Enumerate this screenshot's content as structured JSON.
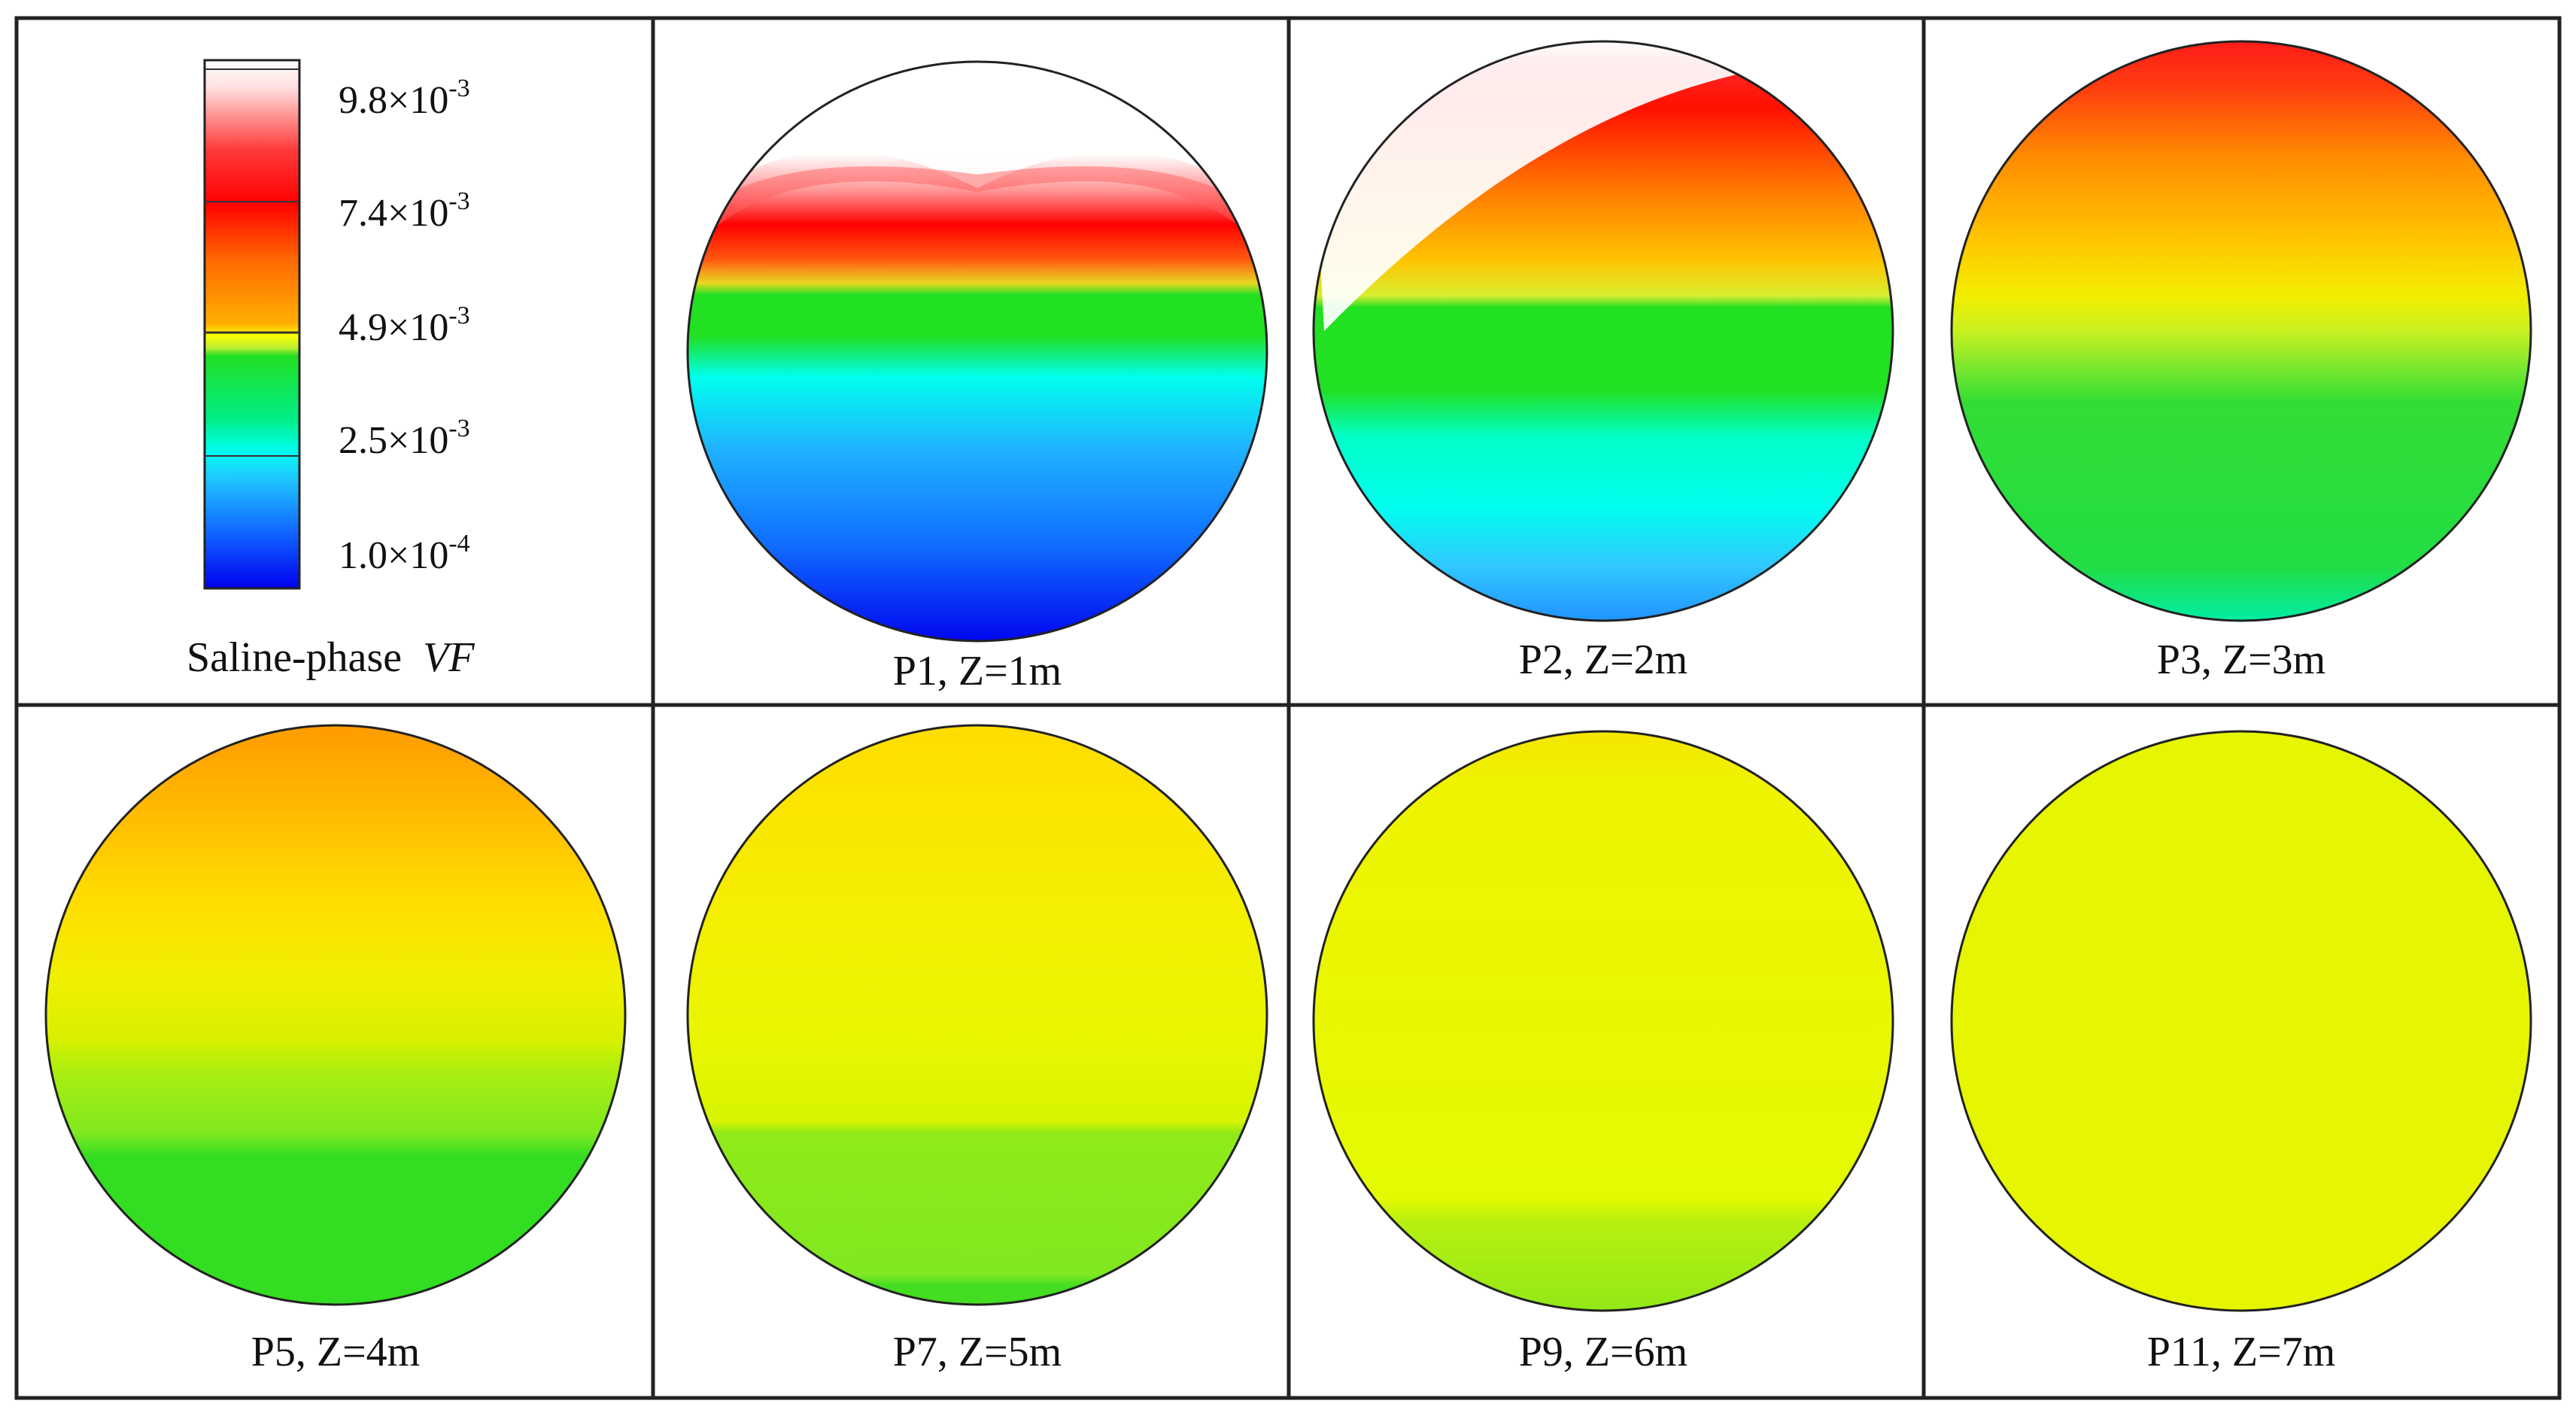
{
  "legend": {
    "title": "Saline-phase",
    "title_var": "VF",
    "ticks": [
      {
        "mantissa": "9.8×10",
        "exp": "-3"
      },
      {
        "mantissa": "7.4×10",
        "exp": "-3"
      },
      {
        "mantissa": "4.9×10",
        "exp": "-3"
      },
      {
        "mantissa": "2.5×10",
        "exp": "-3"
      },
      {
        "mantissa": "1.0×10",
        "exp": "-4"
      }
    ],
    "colors": {
      "max_white": "#ffffff",
      "light_red": "#ff9a9a",
      "red": "#ff0000",
      "orange": "#ff8c00",
      "yellow": "#ffff00",
      "green": "#22e022",
      "cyan": "#00ffee",
      "light_blue": "#20b4ff",
      "blue": "#0000ff"
    }
  },
  "panels": [
    {
      "caption": "P1, Z=1m"
    },
    {
      "caption": "P2, Z=2m"
    },
    {
      "caption": "P3, Z=3m"
    },
    {
      "caption": "P5, Z=4m"
    },
    {
      "caption": "P7, Z=5m"
    },
    {
      "caption": "P9, Z=6m"
    },
    {
      "caption": "P11, Z=7m"
    }
  ]
}
